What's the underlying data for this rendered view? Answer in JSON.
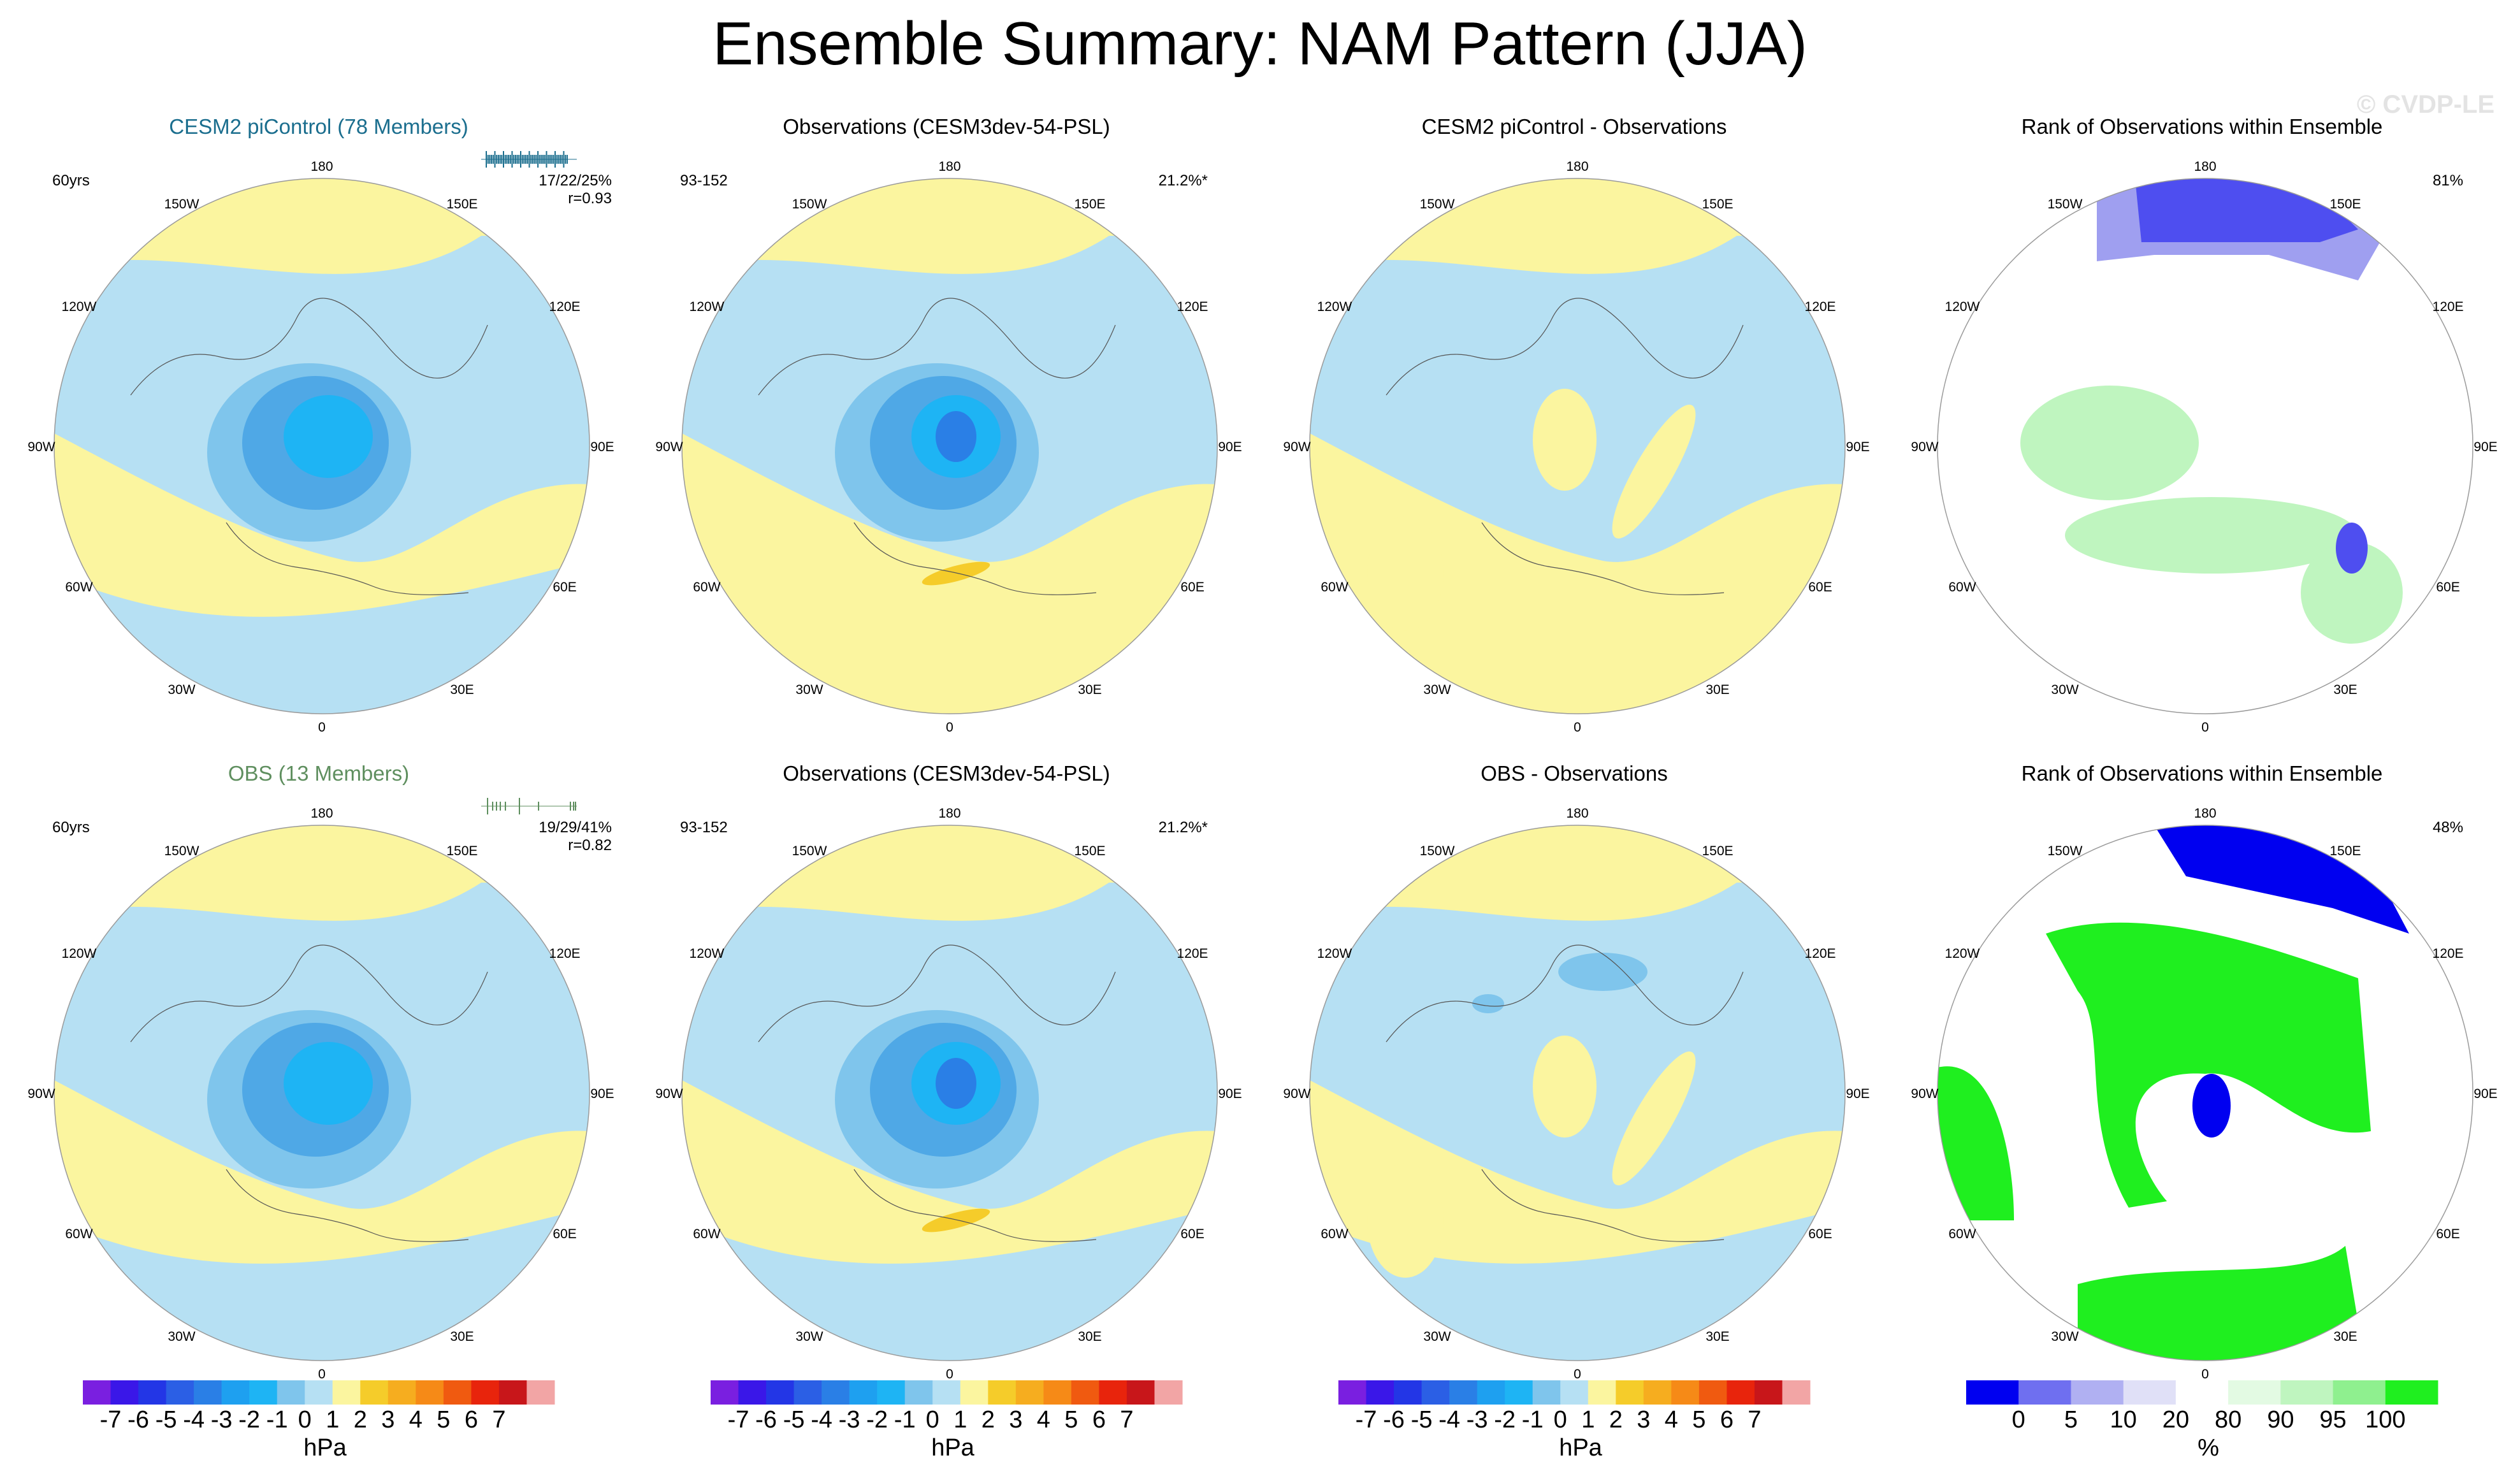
{
  "figure": {
    "title": "Ensemble Summary: NAM Pattern (JJA)",
    "watermark": "© CVDP-LE"
  },
  "colors": {
    "neg1": "#b6e0f3",
    "neg2": "#7fc5ec",
    "neg3": "#4fa8e6",
    "neg4": "#1eb4f4",
    "neg5": "#2a7fe6",
    "pos1": "#fbf59f",
    "pos2": "#f5cc2a",
    "rank_blue": "#0000f0",
    "rank_lightblue": "#9f9ff0",
    "rank_green": "#1fef1f",
    "rank_lightgreen": "#bff5bf"
  },
  "panels": [
    {
      "id": "r1c1",
      "title": "CESM2 piControl (78 Members)",
      "title_color": "blue",
      "left_label": "60yrs",
      "right_label": "17/22/25%",
      "right_label2": "r=0.93",
      "has_strip": true
    },
    {
      "id": "r1c2",
      "title": "Observations (CESM3dev-54-PSL)",
      "title_color": "black",
      "left_label": "93-152",
      "right_label": "21.2%*",
      "right_label2": "",
      "has_strip": false
    },
    {
      "id": "r1c3",
      "title": "CESM2 piControl - Observations",
      "title_color": "black",
      "left_label": "",
      "right_label": "",
      "right_label2": "",
      "has_strip": false
    },
    {
      "id": "r1c4",
      "title": "Rank of Observations within Ensemble",
      "title_color": "black",
      "left_label": "",
      "right_label": "81%",
      "right_label2": "",
      "has_strip": false
    },
    {
      "id": "r2c1",
      "title": "OBS (13 Members)",
      "title_color": "green",
      "left_label": "60yrs",
      "right_label": "19/29/41%",
      "right_label2": "r=0.82",
      "has_strip": true
    },
    {
      "id": "r2c2",
      "title": "Observations (CESM3dev-54-PSL)",
      "title_color": "black",
      "left_label": "93-152",
      "right_label": "21.2%*",
      "right_label2": "",
      "has_strip": false
    },
    {
      "id": "r2c3",
      "title": "OBS - Observations",
      "title_color": "black",
      "left_label": "",
      "right_label": "",
      "right_label2": "",
      "has_strip": false
    },
    {
      "id": "r2c4",
      "title": "Rank of Observations within Ensemble",
      "title_color": "black",
      "left_label": "",
      "right_label": "48%",
      "right_label2": "",
      "has_strip": false
    }
  ],
  "longitude_labels": [
    "180",
    "150E",
    "120E",
    "90E",
    "60E",
    "30E",
    "0",
    "30W",
    "60W",
    "90W",
    "120W",
    "150W"
  ],
  "chart_data": [
    {
      "type": "heatmap",
      "projection": "north polar stereographic",
      "title": "Ensemble Summary: NAM Pattern (JJA)",
      "colorbar_psl": {
        "unit": "hPa",
        "levels": [
          -7,
          -6,
          -5,
          -4,
          -3,
          -2,
          -1,
          0,
          1,
          2,
          3,
          4,
          5,
          6,
          7
        ],
        "tick_labels": [
          "-7",
          "-6",
          "-5",
          "-4",
          "-3",
          "-2",
          "-1",
          "0",
          "1",
          "2",
          "3",
          "4",
          "5",
          "6",
          "7"
        ],
        "colors": [
          "#7a1fe0",
          "#3a17e8",
          "#2336e6",
          "#2b5fe5",
          "#2a7fe6",
          "#1ea0f0",
          "#1eb4f4",
          "#7fc5ec",
          "#b6e0f3",
          "#fbf59f",
          "#f5cc2a",
          "#f6ad1f",
          "#f68a17",
          "#f05a10",
          "#e8240c",
          "#c8161a",
          "#f2a5a5"
        ]
      },
      "colorbar_rank": {
        "unit": "%",
        "tick_labels": [
          "0",
          "5",
          "10",
          "20",
          "80",
          "90",
          "95",
          "100"
        ],
        "colors": [
          "#0000f0",
          "#6f6ff0",
          "#b0b0f2",
          "#e0e0f7",
          "#ffffff",
          "#e3fae3",
          "#bff5bf",
          "#8ff08f",
          "#1fef1f"
        ]
      },
      "panels_summary": [
        {
          "panel": "CESM2 piControl (78 Members)",
          "period": "60yrs",
          "pct_variance": "17/22/25%",
          "pattern_corr": 0.93
        },
        {
          "panel": "Observations (CESM3dev-54-PSL)",
          "period": "93-152",
          "pct_variance": "21.2%*"
        },
        {
          "panel": "OBS (13 Members)",
          "period": "60yrs",
          "pct_variance": "19/29/41%",
          "pattern_corr": 0.82
        },
        {
          "panel": "Rank of Observations within Ensemble",
          "row": 1,
          "pct_area": "81%"
        },
        {
          "panel": "Rank of Observations within Ensemble",
          "row": 2,
          "pct_area": "48%"
        }
      ]
    }
  ]
}
